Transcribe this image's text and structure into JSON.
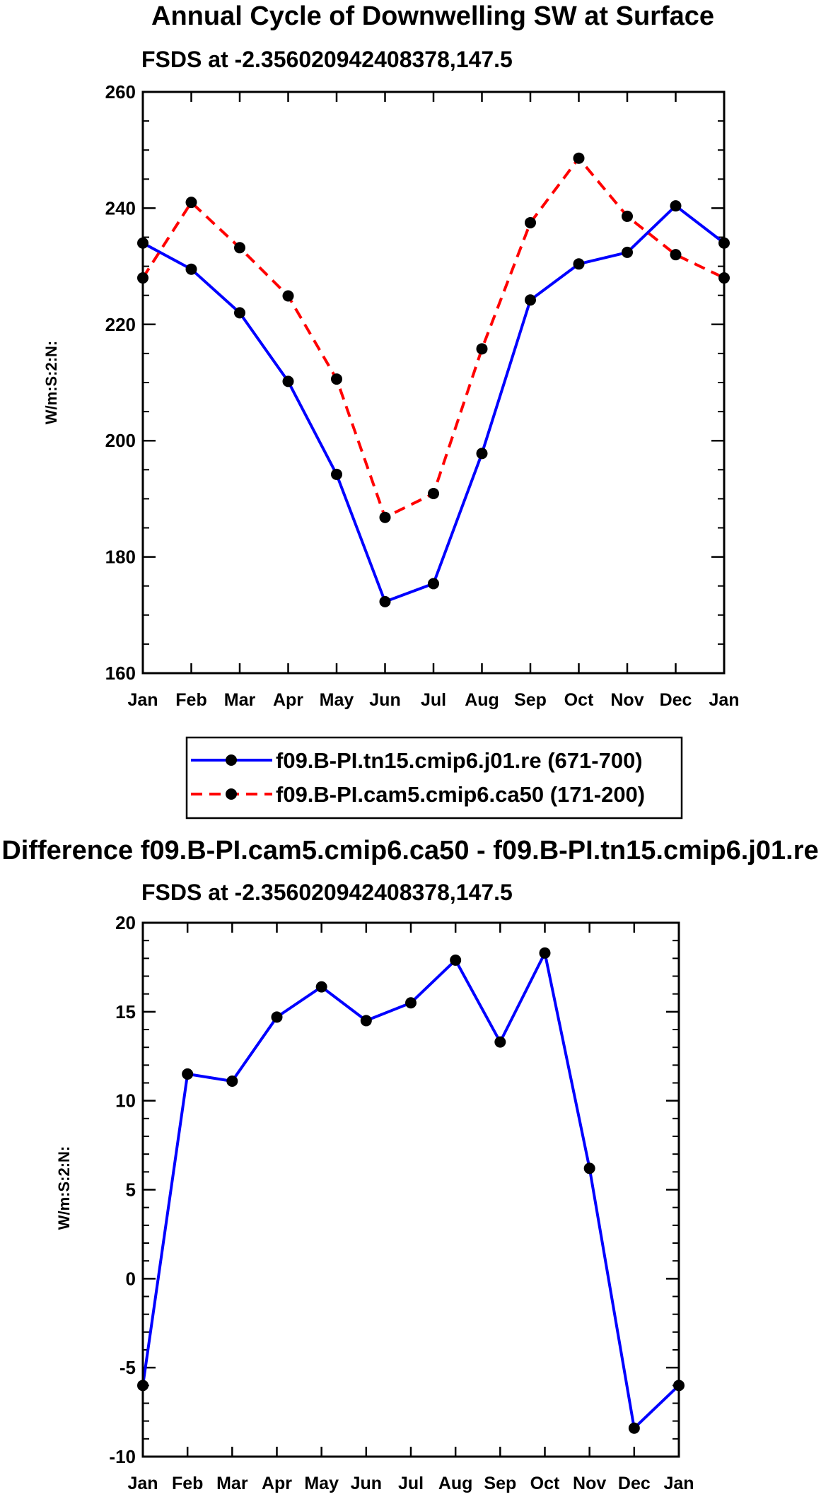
{
  "chart_data": [
    {
      "type": "line",
      "title": "Annual Cycle of Downwelling SW at Surface",
      "subtitle": "FSDS at -2.356020942408378,147.5",
      "ylabel": "W/m:S:2:N:",
      "xlabel": "",
      "categories": [
        "Jan",
        "Feb",
        "Mar",
        "Apr",
        "May",
        "Jun",
        "Jul",
        "Aug",
        "Sep",
        "Oct",
        "Nov",
        "Dec",
        "Jan"
      ],
      "ylim": [
        160,
        260
      ],
      "yticks": [
        160,
        180,
        200,
        220,
        240,
        260
      ],
      "series": [
        {
          "name": "f09.B-PI.tn15.cmip6.j01.re (671-700)",
          "color": "#0000ff",
          "dash": "solid",
          "values": [
            234.0,
            229.5,
            222.0,
            210.2,
            194.2,
            172.3,
            175.4,
            197.8,
            224.2,
            230.4,
            232.4,
            240.4,
            234.0
          ]
        },
        {
          "name": "f09.B-PI.cam5.cmip6.ca50 (171-200)",
          "color": "#ff0000",
          "dash": "dashed",
          "values": [
            228.0,
            241.0,
            233.2,
            224.9,
            210.6,
            186.8,
            190.9,
            215.8,
            237.5,
            248.6,
            238.6,
            232.0,
            228.0
          ]
        }
      ],
      "legend": "below"
    },
    {
      "type": "line",
      "title": "Difference f09.B-PI.cam5.cmip6.ca50 - f09.B-PI.tn15.cmip6.j01.re",
      "subtitle": "FSDS at -2.356020942408378,147.5",
      "ylabel": "W/m:S:2:N:",
      "xlabel": "",
      "categories": [
        "Jan",
        "Feb",
        "Mar",
        "Apr",
        "May",
        "Jun",
        "Jul",
        "Aug",
        "Sep",
        "Oct",
        "Nov",
        "Dec",
        "Jan"
      ],
      "ylim": [
        -10,
        20
      ],
      "yticks": [
        -10,
        -5,
        0,
        5,
        10,
        15,
        20
      ],
      "series": [
        {
          "name": "Difference",
          "color": "#0000ff",
          "dash": "solid",
          "values": [
            -6.0,
            11.5,
            11.1,
            14.7,
            16.4,
            14.5,
            15.5,
            17.9,
            13.3,
            18.3,
            6.2,
            -8.4,
            -6.0
          ]
        }
      ]
    }
  ]
}
